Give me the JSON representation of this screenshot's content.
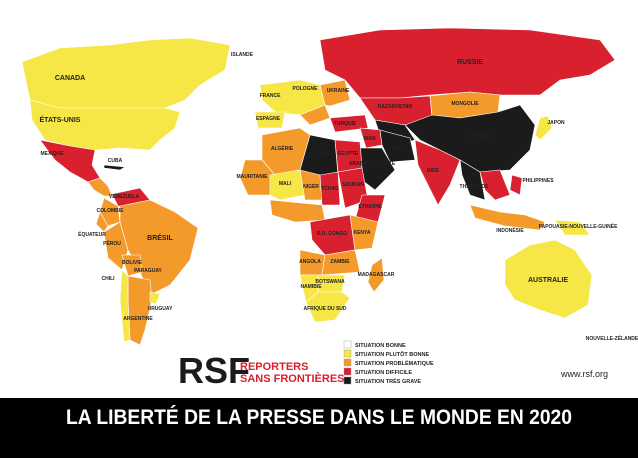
{
  "title": "LA LIBERTÉ DE LA PRESSE DANS LE MONDE EN 2020",
  "logo": {
    "mark": "RSF",
    "line1": "REPORTERS",
    "line2": "SANS FRONTIÈRES"
  },
  "url": "www.rsf.org",
  "legend": [
    {
      "label": "SITUATION BONNE",
      "color": "#ffffff"
    },
    {
      "label": "SITUATION PLUTÔT BONNE",
      "color": "#f6e646"
    },
    {
      "label": "SITUATION PROBLÉMATIQUE",
      "color": "#f39a2b"
    },
    {
      "label": "SITUATION DIFFICILE",
      "color": "#d9202e"
    },
    {
      "label": "SITUATION TRÈS GRAVE",
      "color": "#1b1b1b"
    }
  ],
  "labels": [
    "CANADA",
    "ÉTATS-UNIS",
    "MEXIQUE",
    "CUBA",
    "VENEZUELA",
    "COLOMBIE",
    "ÉQUATEUR",
    "PÉROU",
    "BRÉSIL",
    "BOLIVIE",
    "PARAGUAY",
    "CHILI",
    "ARGENTINE",
    "URUGUAY",
    "ISLANDE",
    "FRANCE",
    "ESPAGNE",
    "POLOGNE",
    "UKRAINE",
    "RUSSIE",
    "KAZAKHSTAN",
    "MONGOLIE",
    "CHINE",
    "JAPON",
    "TURQUIE",
    "IRAK",
    "IRAN",
    "INDE",
    "THAÏLANDE",
    "PHILIPPINES",
    "INDONÉSIE",
    "PAPOUASIE-NOUVELLE-GUINÉE",
    "AUSTRALIE",
    "NOUVELLE-ZÉLANDE",
    "ALGÉRIE",
    "LIBYE",
    "ÉGYPTE",
    "ARABIE SAOUDITE",
    "MAURITANIE",
    "MALI",
    "NIGER",
    "TCHAD",
    "SOUDAN",
    "ÉTHIOPIE",
    "R.D. CONGO",
    "KENYA",
    "ANGOLA",
    "ZAMBIE",
    "NAMIBIE",
    "BOTSWANA",
    "AFRIQUE DU SUD",
    "MADAGASCAR"
  ]
}
